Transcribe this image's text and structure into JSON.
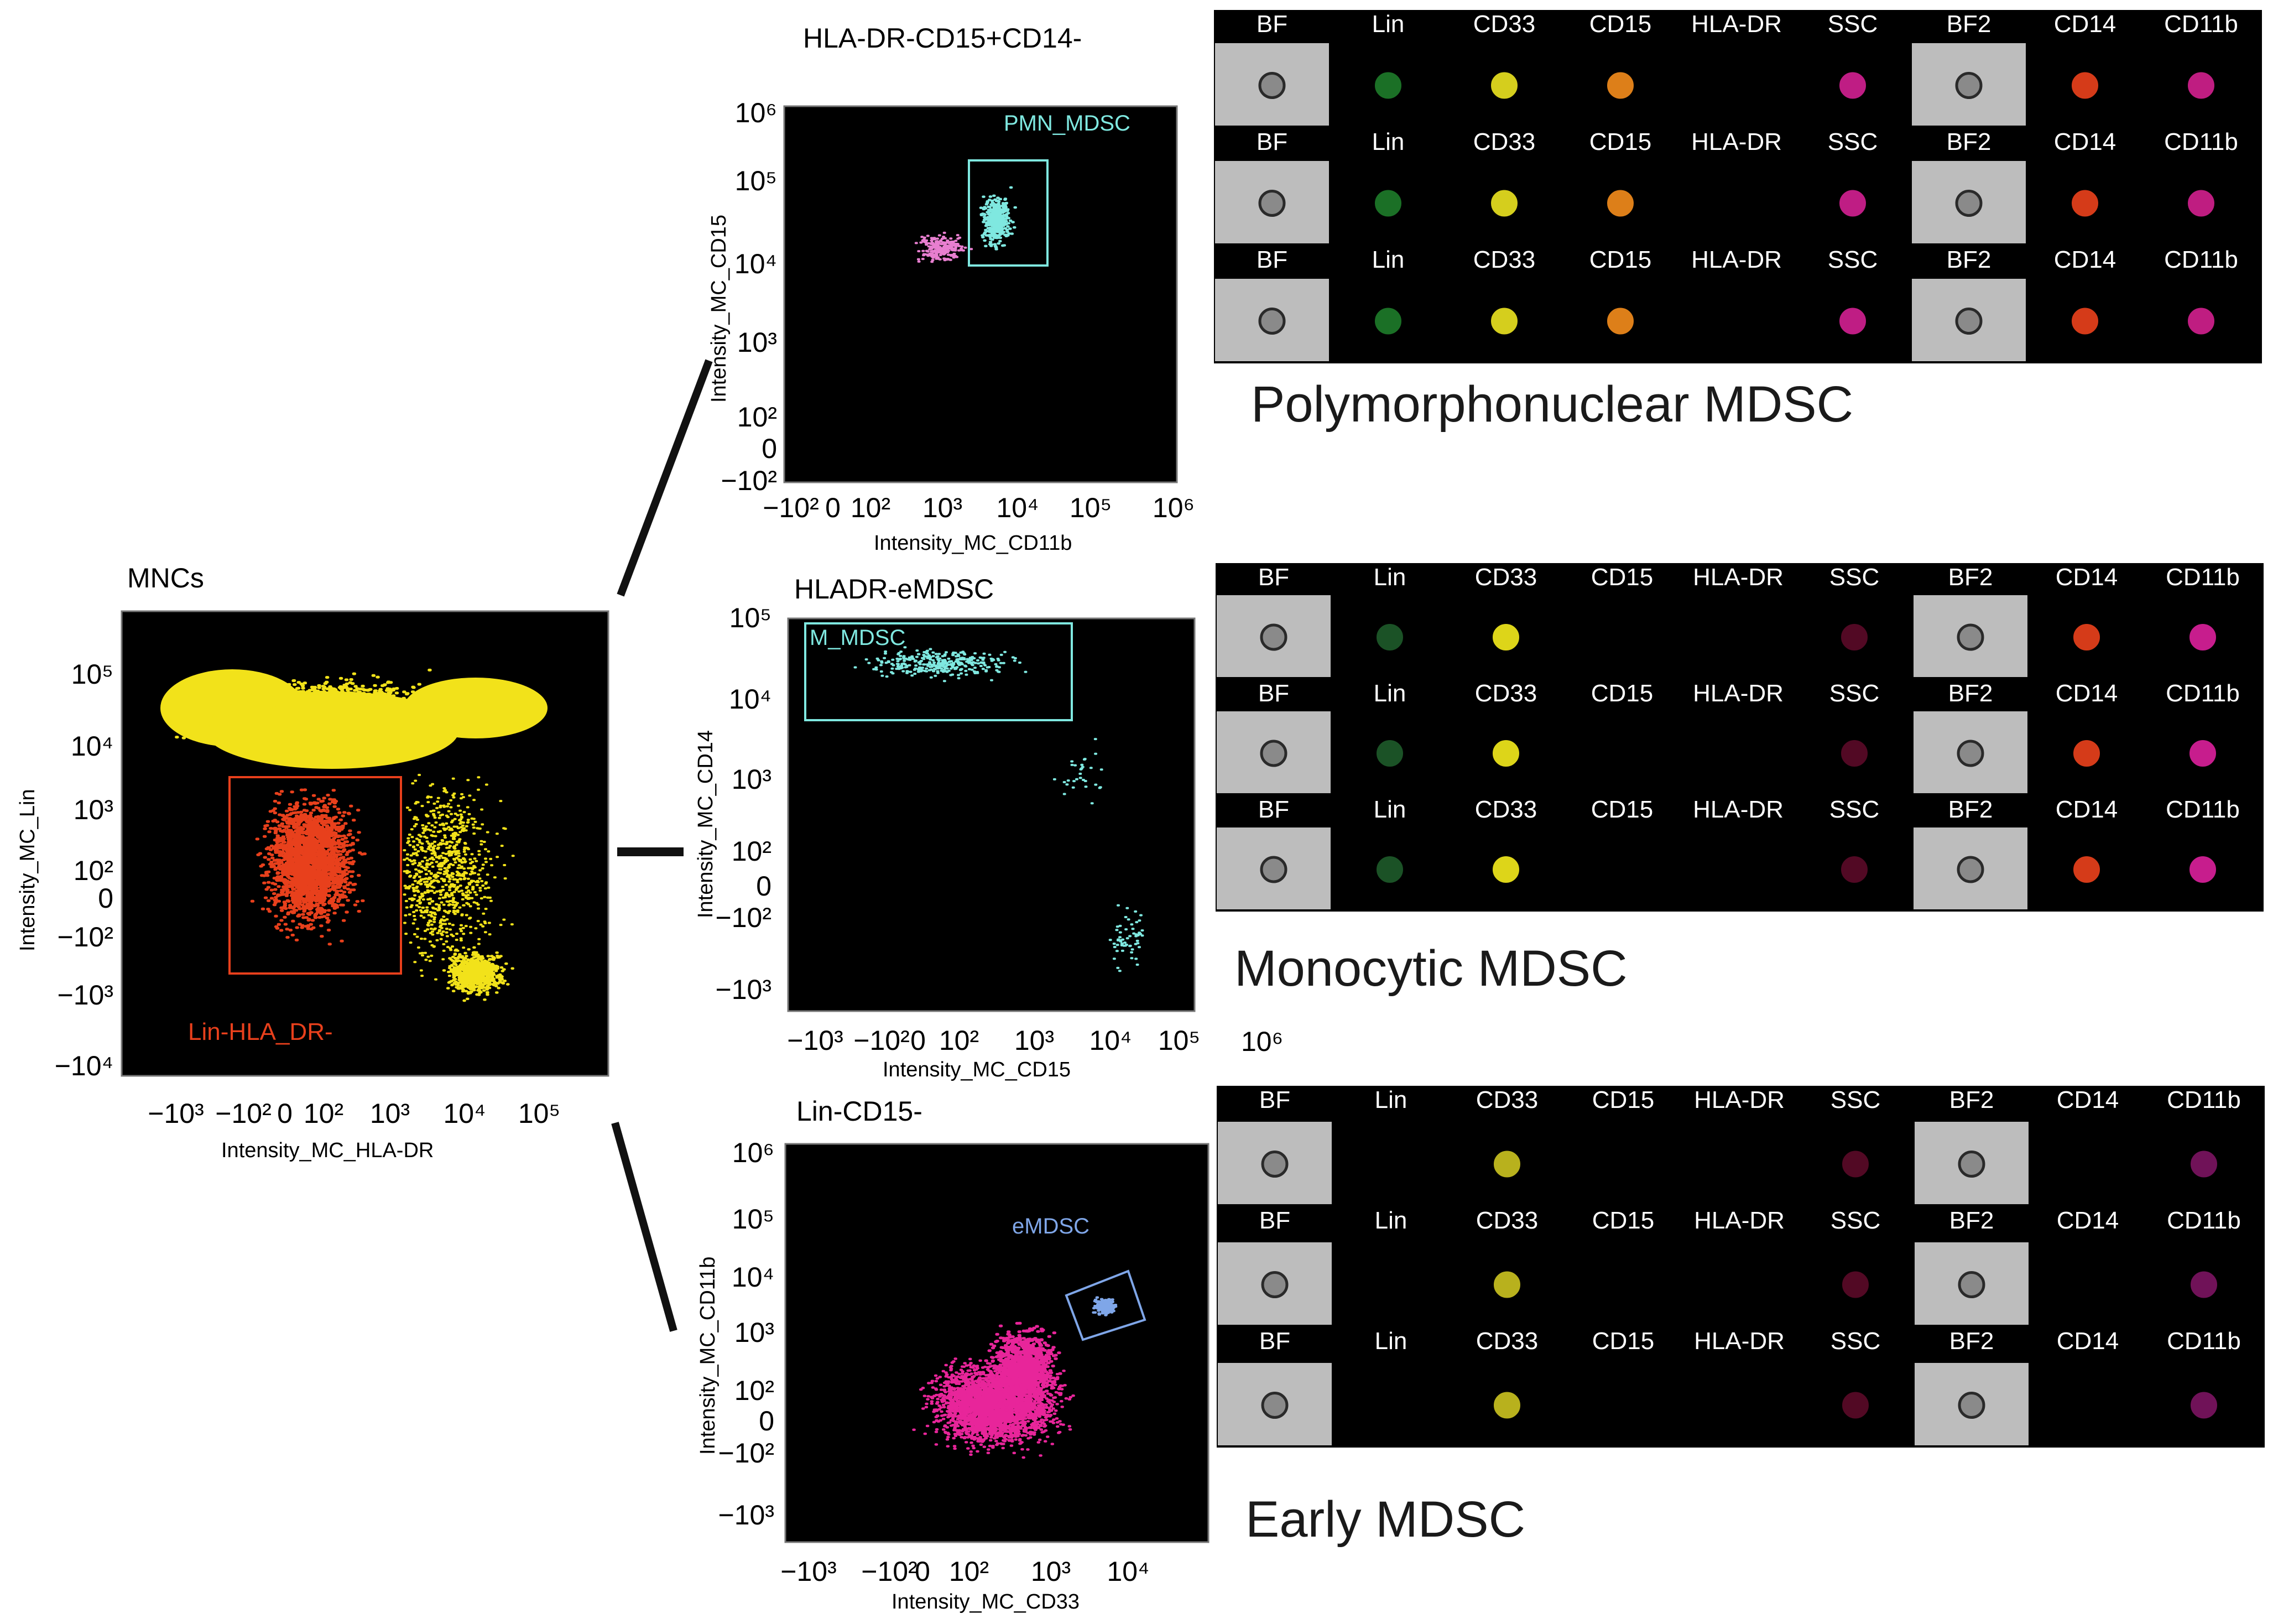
{
  "plots": {
    "mnc": {
      "title": "MNCs",
      "xlabel": "Intensity_MC_HLA-DR",
      "ylabel": "Intensity_MC_Lin",
      "xticks": [
        "−10³",
        "−10²",
        "0",
        "10²",
        "10³",
        "10⁴",
        "10⁵"
      ],
      "yticks": [
        "10⁵",
        "10⁴",
        "10³",
        "10²",
        "0",
        "−10²",
        "−10³",
        "−10⁴"
      ],
      "gate_label": "Lin-HLA_DR-",
      "dot_colors": {
        "population": "#f2e21a",
        "gated": "#e8401c"
      }
    },
    "pmn": {
      "title": "HLA-DR-CD15+CD14-",
      "xlabel": "Intensity_MC_CD11b",
      "ylabel": "Intensity_MC_CD15",
      "xticks": [
        "−10²",
        "0",
        "10²",
        "10³",
        "10⁴",
        "10⁵",
        "10⁶"
      ],
      "yticks": [
        "10⁶",
        "10⁵",
        "10⁴",
        "10³",
        "10²",
        "0",
        "−10²"
      ],
      "gate_label": "PMN_MDSC",
      "dot_colors": {
        "population": "#e87fd0",
        "gated": "#7fe8e0"
      }
    },
    "mono": {
      "title": "HLADR-eMDSC",
      "xlabel": "Intensity_MC_CD15",
      "ylabel": "Intensity_MC_CD14",
      "xticks": [
        "−10³",
        "−10²",
        "0",
        "10²",
        "10³",
        "10⁴",
        "10⁵"
      ],
      "yticks": [
        "10⁵",
        "10⁴",
        "10³",
        "10²",
        "0",
        "−10²",
        "−10³"
      ],
      "extra_tick": "10⁶",
      "gate_label": "M_MDSC",
      "dot_colors": {
        "population": "#7fe8e0",
        "gated": "#7fe8e0"
      }
    },
    "early": {
      "title": "Lin-CD15-",
      "xlabel": "Intensity_MC_CD33",
      "ylabel": "Intensity_MC_CD11b",
      "xticks": [
        "−10³",
        "−10²",
        "0",
        "10²",
        "10³",
        "10⁴"
      ],
      "yticks": [
        "10⁶",
        "10⁵",
        "10⁴",
        "10³",
        "10²",
        "0",
        "−10²",
        "−10³"
      ],
      "gate_label": "eMDSC",
      "dot_colors": {
        "population": "#e8259a",
        "gated": "#7fa6e8"
      }
    }
  },
  "galleries": {
    "pmn": {
      "caption": "Polymorphonuclear MDSC",
      "channels": [
        "BF",
        "Lin",
        "CD33",
        "CD15",
        "HLA-DR",
        "SSC",
        "BF2",
        "CD14",
        "CD11b"
      ],
      "rows": 3,
      "stain_colors": {
        "CD33": "#e8e020",
        "CD15": "#f08a1c",
        "SSC": "#d02090",
        "CD11b": "#d0208c",
        "CD14": "#e8401c",
        "Lin": "#1e7a2a"
      }
    },
    "mono": {
      "caption": "Monocytic MDSC",
      "channels": [
        "BF",
        "Lin",
        "CD33",
        "CD15",
        "HLA-DR",
        "SSC",
        "BF2",
        "CD14",
        "CD11b"
      ],
      "rows": 3,
      "stain_colors": {
        "CD33": "#f0e81c",
        "CD14": "#e8401c",
        "CD11b": "#d8209a",
        "Lin": "#1e5a2a",
        "SSC": "#5a0a28"
      }
    },
    "early": {
      "caption": "Early MDSC",
      "channels": [
        "BF",
        "Lin",
        "CD33",
        "CD15",
        "HLA-DR",
        "SSC",
        "BF2",
        "CD14",
        "CD11b"
      ],
      "rows": 3,
      "stain_colors": {
        "CD33": "#c8c020",
        "CD11b": "#7a1460",
        "SSC": "#5a0a28"
      }
    }
  }
}
